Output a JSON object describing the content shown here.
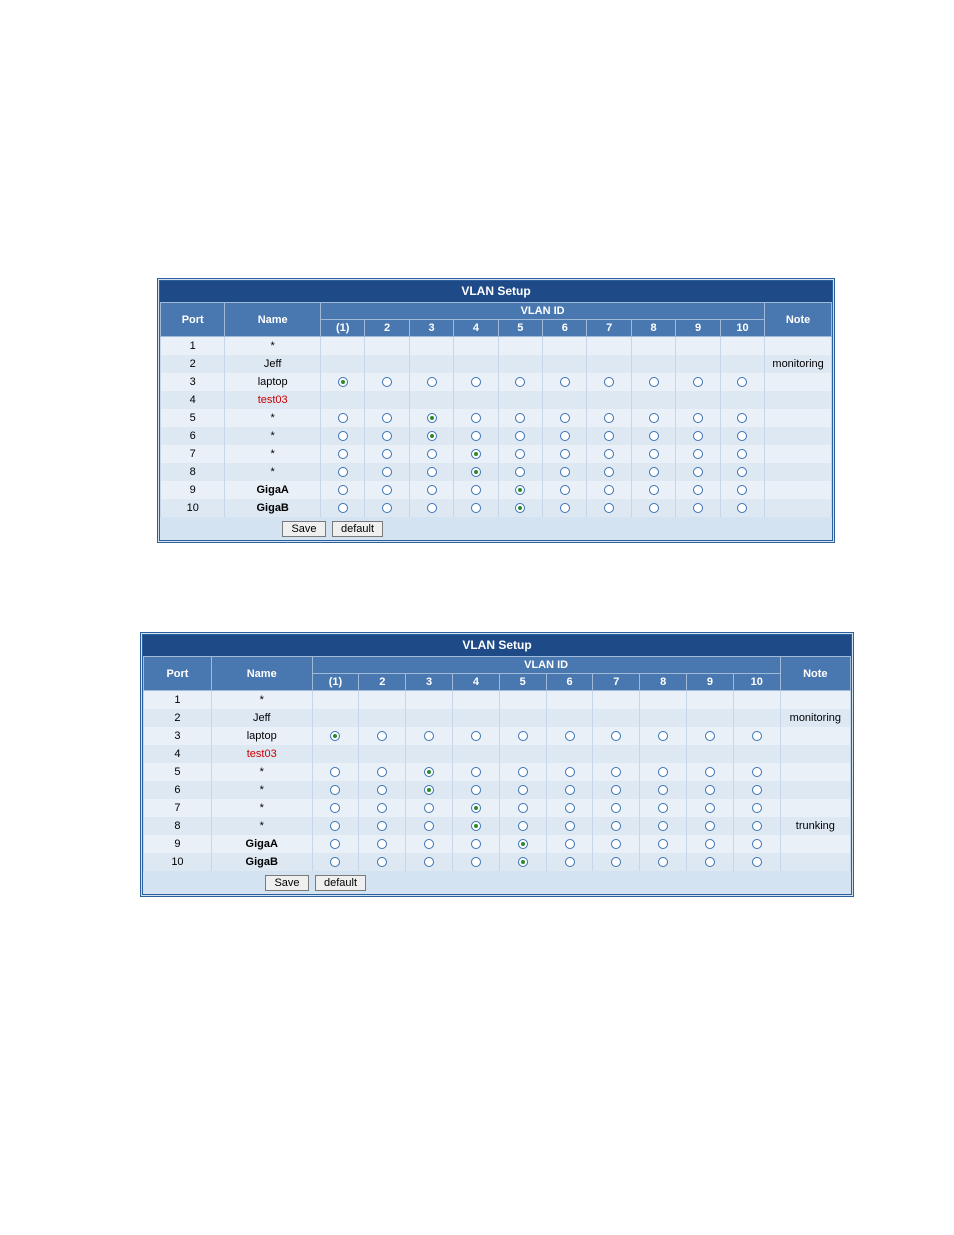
{
  "title": "VLAN Setup",
  "columns": {
    "port": "Port",
    "name": "Name",
    "vlan_group": "VLAN ID",
    "vlan_ids": [
      "(1)",
      "2",
      "3",
      "4",
      "5",
      "6",
      "7",
      "8",
      "9",
      "10"
    ],
    "note": "Note"
  },
  "buttons": {
    "save": "Save",
    "default": "default"
  },
  "table1": {
    "rows": [
      {
        "port": "1",
        "name": "*",
        "style": "",
        "radios": null,
        "note": ""
      },
      {
        "port": "2",
        "name": "Jeff",
        "style": "",
        "radios": null,
        "note": "monitoring"
      },
      {
        "port": "3",
        "name": "laptop",
        "style": "",
        "radios": [
          1,
          0,
          0,
          0,
          0,
          0,
          0,
          0,
          0,
          0
        ],
        "note": ""
      },
      {
        "port": "4",
        "name": "test03",
        "style": "name-red",
        "radios": null,
        "note": ""
      },
      {
        "port": "5",
        "name": "*",
        "style": "",
        "radios": [
          0,
          0,
          1,
          0,
          0,
          0,
          0,
          0,
          0,
          0
        ],
        "note": ""
      },
      {
        "port": "6",
        "name": "*",
        "style": "",
        "radios": [
          0,
          0,
          1,
          0,
          0,
          0,
          0,
          0,
          0,
          0
        ],
        "note": ""
      },
      {
        "port": "7",
        "name": "*",
        "style": "",
        "radios": [
          0,
          0,
          0,
          1,
          0,
          0,
          0,
          0,
          0,
          0
        ],
        "note": ""
      },
      {
        "port": "8",
        "name": "*",
        "style": "",
        "radios": [
          0,
          0,
          0,
          1,
          0,
          0,
          0,
          0,
          0,
          0
        ],
        "note": ""
      },
      {
        "port": "9",
        "name": "GigaA",
        "style": "name-bold",
        "radios": [
          0,
          0,
          0,
          0,
          1,
          0,
          0,
          0,
          0,
          0
        ],
        "note": ""
      },
      {
        "port": "10",
        "name": "GigaB",
        "style": "name-bold",
        "radios": [
          0,
          0,
          0,
          0,
          1,
          0,
          0,
          0,
          0,
          0
        ],
        "note": ""
      }
    ]
  },
  "table2": {
    "rows": [
      {
        "port": "1",
        "name": "*",
        "style": "",
        "radios": null,
        "note": ""
      },
      {
        "port": "2",
        "name": "Jeff",
        "style": "",
        "radios": null,
        "note": "monitoring"
      },
      {
        "port": "3",
        "name": "laptop",
        "style": "",
        "radios": [
          1,
          0,
          0,
          0,
          0,
          0,
          0,
          0,
          0,
          0
        ],
        "note": ""
      },
      {
        "port": "4",
        "name": "test03",
        "style": "name-red",
        "radios": null,
        "note": ""
      },
      {
        "port": "5",
        "name": "*",
        "style": "",
        "radios": [
          0,
          0,
          1,
          0,
          0,
          0,
          0,
          0,
          0,
          0
        ],
        "note": ""
      },
      {
        "port": "6",
        "name": "*",
        "style": "",
        "radios": [
          0,
          0,
          1,
          0,
          0,
          0,
          0,
          0,
          0,
          0
        ],
        "note": ""
      },
      {
        "port": "7",
        "name": "*",
        "style": "",
        "radios": [
          0,
          0,
          0,
          1,
          0,
          0,
          0,
          0,
          0,
          0
        ],
        "note": ""
      },
      {
        "port": "8",
        "name": "*",
        "style": "",
        "radios": [
          0,
          0,
          0,
          1,
          0,
          0,
          0,
          0,
          0,
          0
        ],
        "note": "trunking"
      },
      {
        "port": "9",
        "name": "GigaA",
        "style": "name-bold",
        "radios": [
          0,
          0,
          0,
          0,
          1,
          0,
          0,
          0,
          0,
          0
        ],
        "note": ""
      },
      {
        "port": "10",
        "name": "GigaB",
        "style": "name-bold",
        "radios": [
          0,
          0,
          0,
          0,
          1,
          0,
          0,
          0,
          0,
          0
        ],
        "note": ""
      }
    ]
  }
}
